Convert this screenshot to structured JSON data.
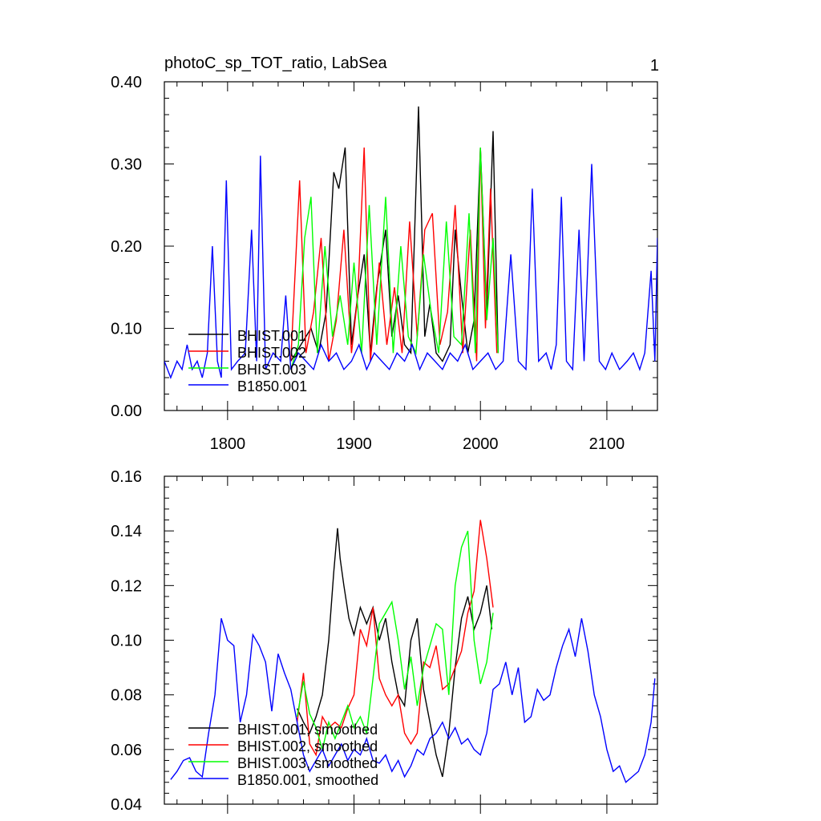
{
  "figure": {
    "title": "photoC_sp_TOT_ratio, LabSea",
    "panel_number": "1"
  },
  "chart_data": [
    {
      "type": "line",
      "title": "photoC_sp_TOT_ratio, LabSea",
      "xlabel": "",
      "ylabel": "",
      "xlim": [
        1750,
        2140
      ],
      "ylim": [
        0.0,
        0.4
      ],
      "x_ticks": [
        1800,
        1900,
        2000,
        2100
      ],
      "x_tick_labels": [
        "1800",
        "1900",
        "2000",
        "2100"
      ],
      "y_ticks": [
        0.0,
        0.1,
        0.2,
        0.3,
        0.4
      ],
      "y_tick_labels": [
        "0.00",
        "0.10",
        "0.20",
        "0.30",
        "0.40"
      ],
      "grid": false,
      "legend_position": "bottom-left",
      "series": [
        {
          "name": "BHIST.001",
          "color": "#000000",
          "x": [
            1850,
            1858,
            1866,
            1872,
            1878,
            1884,
            1888,
            1893,
            1898,
            1903,
            1908,
            1913,
            1918,
            1925,
            1930,
            1935,
            1940,
            1945,
            1951,
            1956,
            1960,
            1965,
            1970,
            1976,
            1980,
            1985,
            1990,
            1995,
            2000,
            2005,
            2010,
            2014
          ],
          "y": [
            0.06,
            0.08,
            0.1,
            0.07,
            0.12,
            0.29,
            0.27,
            0.32,
            0.08,
            0.14,
            0.19,
            0.07,
            0.15,
            0.22,
            0.09,
            0.14,
            0.08,
            0.07,
            0.37,
            0.09,
            0.13,
            0.07,
            0.06,
            0.08,
            0.22,
            0.14,
            0.07,
            0.11,
            0.32,
            0.12,
            0.34,
            0.07
          ]
        },
        {
          "name": "BHIST.002",
          "color": "#ff0000",
          "x": [
            1850,
            1857,
            1862,
            1868,
            1874,
            1880,
            1886,
            1892,
            1898,
            1903,
            1908,
            1913,
            1920,
            1926,
            1932,
            1938,
            1944,
            1950,
            1956,
            1962,
            1968,
            1974,
            1980,
            1986,
            1992,
            1997,
            2000,
            2004,
            2008,
            2013
          ],
          "y": [
            0.06,
            0.28,
            0.07,
            0.12,
            0.21,
            0.06,
            0.11,
            0.22,
            0.07,
            0.14,
            0.32,
            0.06,
            0.18,
            0.08,
            0.15,
            0.07,
            0.23,
            0.09,
            0.22,
            0.24,
            0.08,
            0.12,
            0.25,
            0.07,
            0.22,
            0.06,
            0.32,
            0.1,
            0.27,
            0.07
          ]
        },
        {
          "name": "BHIST.003",
          "color": "#00ff00",
          "x": [
            1850,
            1856,
            1861,
            1866,
            1871,
            1877,
            1883,
            1889,
            1895,
            1900,
            1906,
            1912,
            1918,
            1925,
            1931,
            1937,
            1943,
            1949,
            1955,
            1961,
            1967,
            1973,
            1979,
            1985,
            1991,
            1996,
            2000,
            2005,
            2010,
            2014
          ],
          "y": [
            0.05,
            0.08,
            0.21,
            0.26,
            0.07,
            0.2,
            0.09,
            0.14,
            0.08,
            0.18,
            0.07,
            0.25,
            0.08,
            0.26,
            0.07,
            0.2,
            0.09,
            0.07,
            0.19,
            0.12,
            0.07,
            0.23,
            0.09,
            0.08,
            0.24,
            0.07,
            0.32,
            0.11,
            0.21,
            0.07
          ]
        },
        {
          "name": "B1850.001",
          "color": "#0000ff",
          "x": [
            1750,
            1755,
            1760,
            1764,
            1768,
            1772,
            1776,
            1780,
            1784,
            1788,
            1792,
            1795,
            1799,
            1803,
            1808,
            1814,
            1819,
            1823,
            1826,
            1830,
            1836,
            1842,
            1846,
            1850,
            1856,
            1862,
            1868,
            1874,
            1880,
            1886,
            1892,
            1898,
            1904,
            1910,
            1916,
            1922,
            1928,
            1934,
            1940,
            1946,
            1952,
            1958,
            1964,
            1970,
            1976,
            1982,
            1988,
            1994,
            2000,
            2006,
            2012,
            2018,
            2024,
            2030,
            2036,
            2041,
            2046,
            2052,
            2056,
            2060,
            2064,
            2068,
            2073,
            2078,
            2082,
            2088,
            2094,
            2099,
            2104,
            2110,
            2116,
            2121,
            2126,
            2130,
            2135,
            2138,
            2140
          ],
          "y": [
            0.06,
            0.04,
            0.06,
            0.05,
            0.08,
            0.05,
            0.06,
            0.04,
            0.07,
            0.2,
            0.06,
            0.04,
            0.28,
            0.05,
            0.06,
            0.07,
            0.22,
            0.06,
            0.31,
            0.05,
            0.07,
            0.06,
            0.14,
            0.05,
            0.07,
            0.06,
            0.05,
            0.08,
            0.06,
            0.07,
            0.05,
            0.06,
            0.08,
            0.05,
            0.07,
            0.06,
            0.05,
            0.07,
            0.06,
            0.08,
            0.05,
            0.07,
            0.06,
            0.05,
            0.07,
            0.06,
            0.08,
            0.05,
            0.06,
            0.07,
            0.05,
            0.06,
            0.19,
            0.06,
            0.05,
            0.27,
            0.06,
            0.07,
            0.05,
            0.08,
            0.26,
            0.06,
            0.05,
            0.22,
            0.06,
            0.3,
            0.06,
            0.05,
            0.07,
            0.05,
            0.06,
            0.07,
            0.05,
            0.07,
            0.17,
            0.06,
            0.21
          ]
        }
      ]
    },
    {
      "type": "line",
      "title": "",
      "xlabel": "",
      "ylabel": "",
      "xlim": [
        1750,
        2140
      ],
      "ylim": [
        0.04,
        0.16
      ],
      "x_ticks": [
        1800,
        1900,
        2000,
        2100
      ],
      "x_tick_labels": [
        "",
        "",
        "",
        ""
      ],
      "y_ticks": [
        0.04,
        0.06,
        0.08,
        0.1,
        0.12,
        0.14,
        0.16
      ],
      "y_tick_labels": [
        "0.04",
        "0.06",
        "0.08",
        "0.10",
        "0.12",
        "0.14",
        "0.16"
      ],
      "grid": false,
      "legend_position": "bottom-left",
      "series": [
        {
          "name": "BHIST.001, smoothed",
          "color": "#000000",
          "x": [
            1855,
            1860,
            1865,
            1870,
            1875,
            1880,
            1884,
            1887,
            1889,
            1892,
            1896,
            1900,
            1905,
            1910,
            1915,
            1920,
            1925,
            1930,
            1935,
            1940,
            1945,
            1950,
            1955,
            1960,
            1965,
            1970,
            1975,
            1980,
            1985,
            1990,
            1995,
            2000,
            2005,
            2009
          ],
          "y": [
            0.075,
            0.07,
            0.066,
            0.072,
            0.08,
            0.1,
            0.125,
            0.141,
            0.13,
            0.12,
            0.108,
            0.102,
            0.112,
            0.106,
            0.112,
            0.1,
            0.108,
            0.092,
            0.08,
            0.076,
            0.1,
            0.108,
            0.082,
            0.07,
            0.058,
            0.05,
            0.066,
            0.09,
            0.108,
            0.116,
            0.104,
            0.11,
            0.12,
            0.104
          ]
        },
        {
          "name": "BHIST.002, smoothed",
          "color": "#ff0000",
          "x": [
            1855,
            1860,
            1865,
            1870,
            1875,
            1880,
            1885,
            1890,
            1895,
            1900,
            1905,
            1910,
            1915,
            1920,
            1925,
            1930,
            1935,
            1940,
            1945,
            1950,
            1955,
            1960,
            1965,
            1970,
            1975,
            1980,
            1985,
            1990,
            1995,
            2000,
            2005,
            2010
          ],
          "y": [
            0.07,
            0.088,
            0.062,
            0.058,
            0.072,
            0.068,
            0.07,
            0.068,
            0.075,
            0.08,
            0.104,
            0.098,
            0.112,
            0.086,
            0.08,
            0.076,
            0.08,
            0.066,
            0.062,
            0.066,
            0.092,
            0.09,
            0.098,
            0.082,
            0.084,
            0.09,
            0.096,
            0.11,
            0.118,
            0.144,
            0.13,
            0.112
          ]
        },
        {
          "name": "BHIST.003, smoothed",
          "color": "#00ff00",
          "x": [
            1855,
            1860,
            1865,
            1870,
            1875,
            1880,
            1885,
            1890,
            1895,
            1900,
            1905,
            1910,
            1915,
            1920,
            1925,
            1930,
            1935,
            1940,
            1945,
            1950,
            1955,
            1960,
            1965,
            1970,
            1975,
            1980,
            1985,
            1990,
            1995,
            2000,
            2005,
            2010
          ],
          "y": [
            0.072,
            0.085,
            0.073,
            0.068,
            0.06,
            0.07,
            0.064,
            0.07,
            0.076,
            0.068,
            0.072,
            0.066,
            0.086,
            0.106,
            0.11,
            0.114,
            0.1,
            0.082,
            0.094,
            0.076,
            0.09,
            0.098,
            0.106,
            0.104,
            0.08,
            0.12,
            0.134,
            0.14,
            0.1,
            0.084,
            0.092,
            0.11
          ]
        },
        {
          "name": "B1850.001, smoothed",
          "color": "#0000ff",
          "x": [
            1755,
            1760,
            1765,
            1770,
            1775,
            1780,
            1785,
            1790,
            1795,
            1800,
            1805,
            1810,
            1815,
            1820,
            1825,
            1830,
            1835,
            1840,
            1845,
            1850,
            1855,
            1860,
            1865,
            1870,
            1875,
            1880,
            1885,
            1890,
            1895,
            1900,
            1905,
            1910,
            1915,
            1920,
            1925,
            1930,
            1935,
            1940,
            1945,
            1950,
            1955,
            1960,
            1965,
            1970,
            1975,
            1980,
            1985,
            1990,
            1995,
            2000,
            2005,
            2010,
            2015,
            2020,
            2025,
            2030,
            2035,
            2040,
            2045,
            2050,
            2055,
            2060,
            2065,
            2070,
            2075,
            2080,
            2085,
            2090,
            2095,
            2100,
            2105,
            2110,
            2115,
            2120,
            2125,
            2130,
            2135,
            2138
          ],
          "y": [
            0.049,
            0.052,
            0.056,
            0.057,
            0.052,
            0.05,
            0.066,
            0.08,
            0.108,
            0.1,
            0.098,
            0.07,
            0.08,
            0.102,
            0.098,
            0.092,
            0.074,
            0.095,
            0.088,
            0.082,
            0.07,
            0.058,
            0.052,
            0.056,
            0.06,
            0.054,
            0.058,
            0.062,
            0.056,
            0.06,
            0.058,
            0.064,
            0.056,
            0.055,
            0.058,
            0.052,
            0.056,
            0.05,
            0.054,
            0.06,
            0.058,
            0.064,
            0.066,
            0.07,
            0.064,
            0.068,
            0.062,
            0.064,
            0.06,
            0.058,
            0.066,
            0.082,
            0.084,
            0.092,
            0.08,
            0.09,
            0.07,
            0.072,
            0.082,
            0.078,
            0.08,
            0.09,
            0.098,
            0.104,
            0.094,
            0.108,
            0.096,
            0.08,
            0.072,
            0.06,
            0.052,
            0.054,
            0.048,
            0.05,
            0.052,
            0.058,
            0.07,
            0.086
          ]
        }
      ]
    }
  ]
}
